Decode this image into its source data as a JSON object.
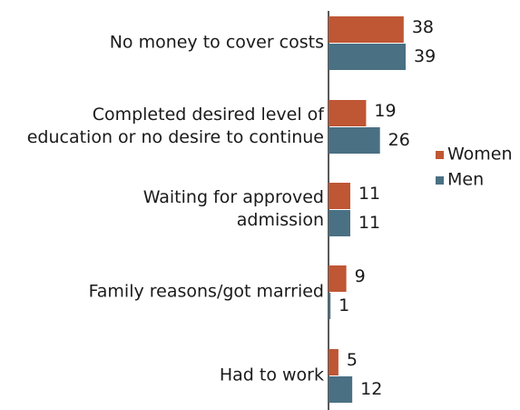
{
  "chart_data": {
    "type": "bar",
    "orientation": "horizontal",
    "categories": [
      [
        "No money to cover costs"
      ],
      [
        "Completed desired level of",
        "education or no desire to continue"
      ],
      [
        "Waiting for approved",
        "admission"
      ],
      [
        "Family reasons/got married"
      ],
      [
        "Had to work"
      ]
    ],
    "series": [
      {
        "name": "Women",
        "color": "#bf5634",
        "values": [
          38,
          19,
          11,
          9,
          5
        ]
      },
      {
        "name": "Men",
        "color": "#4a7083",
        "values": [
          39,
          26,
          11,
          1,
          12
        ]
      }
    ],
    "legend": "right"
  }
}
